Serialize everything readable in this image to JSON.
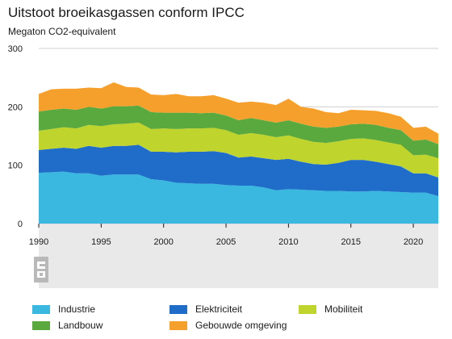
{
  "chart_data": {
    "type": "area",
    "stacked": true,
    "title": "Uitstoot broeikasgassen conform IPCC",
    "ylabel": "Megaton CO2-equivalent",
    "xlabel": "",
    "x": [
      1990,
      1991,
      1992,
      1993,
      1994,
      1995,
      1996,
      1997,
      1998,
      1999,
      2000,
      2001,
      2002,
      2003,
      2004,
      2005,
      2006,
      2007,
      2008,
      2009,
      2010,
      2011,
      2012,
      2013,
      2014,
      2015,
      2016,
      2017,
      2018,
      2019,
      2020,
      2021,
      2022
    ],
    "xticks": [
      1990,
      1995,
      2000,
      2005,
      2010,
      2015,
      2020
    ],
    "yticks": [
      0,
      100,
      200,
      300
    ],
    "ylim": [
      0,
      300
    ],
    "xlim": [
      1990,
      2022
    ],
    "grid": true,
    "legend_position": "bottom",
    "series": [
      {
        "name": "Industrie",
        "color": "#3bb8df",
        "values": [
          87,
          88,
          89,
          86,
          86,
          82,
          84,
          84,
          84,
          76,
          74,
          70,
          69,
          68,
          68,
          66,
          65,
          65,
          62,
          57,
          59,
          58,
          57,
          56,
          56,
          55,
          55,
          56,
          55,
          54,
          53,
          53,
          47
        ]
      },
      {
        "name": "Elektriciteit",
        "color": "#1f6dc9",
        "values": [
          39,
          40,
          41,
          42,
          47,
          48,
          49,
          49,
          51,
          47,
          49,
          52,
          54,
          55,
          56,
          55,
          48,
          50,
          50,
          52,
          52,
          48,
          45,
          45,
          48,
          54,
          54,
          50,
          47,
          44,
          33,
          33,
          32
        ]
      },
      {
        "name": "Mobiliteit",
        "color": "#bfd52e",
        "values": [
          33,
          34,
          35,
          35,
          36,
          37,
          37,
          38,
          38,
          39,
          40,
          40,
          40,
          40,
          40,
          39,
          39,
          40,
          40,
          39,
          40,
          39,
          38,
          37,
          37,
          36,
          37,
          37,
          37,
          37,
          31,
          32,
          33
        ]
      },
      {
        "name": "Landbouw",
        "color": "#5aa93f",
        "values": [
          33,
          33,
          32,
          32,
          31,
          30,
          31,
          30,
          29,
          29,
          27,
          28,
          27,
          26,
          26,
          25,
          25,
          26,
          25,
          25,
          26,
          26,
          26,
          26,
          25,
          25,
          25,
          26,
          25,
          25,
          25,
          26,
          24
        ]
      },
      {
        "name": "Gebouwde omgeving",
        "color": "#f5a02c",
        "values": [
          30,
          35,
          34,
          36,
          33,
          35,
          41,
          33,
          31,
          30,
          30,
          32,
          28,
          29,
          30,
          29,
          30,
          28,
          30,
          30,
          37,
          29,
          31,
          27,
          23,
          25,
          23,
          24,
          25,
          23,
          22,
          22,
          18
        ]
      }
    ]
  }
}
